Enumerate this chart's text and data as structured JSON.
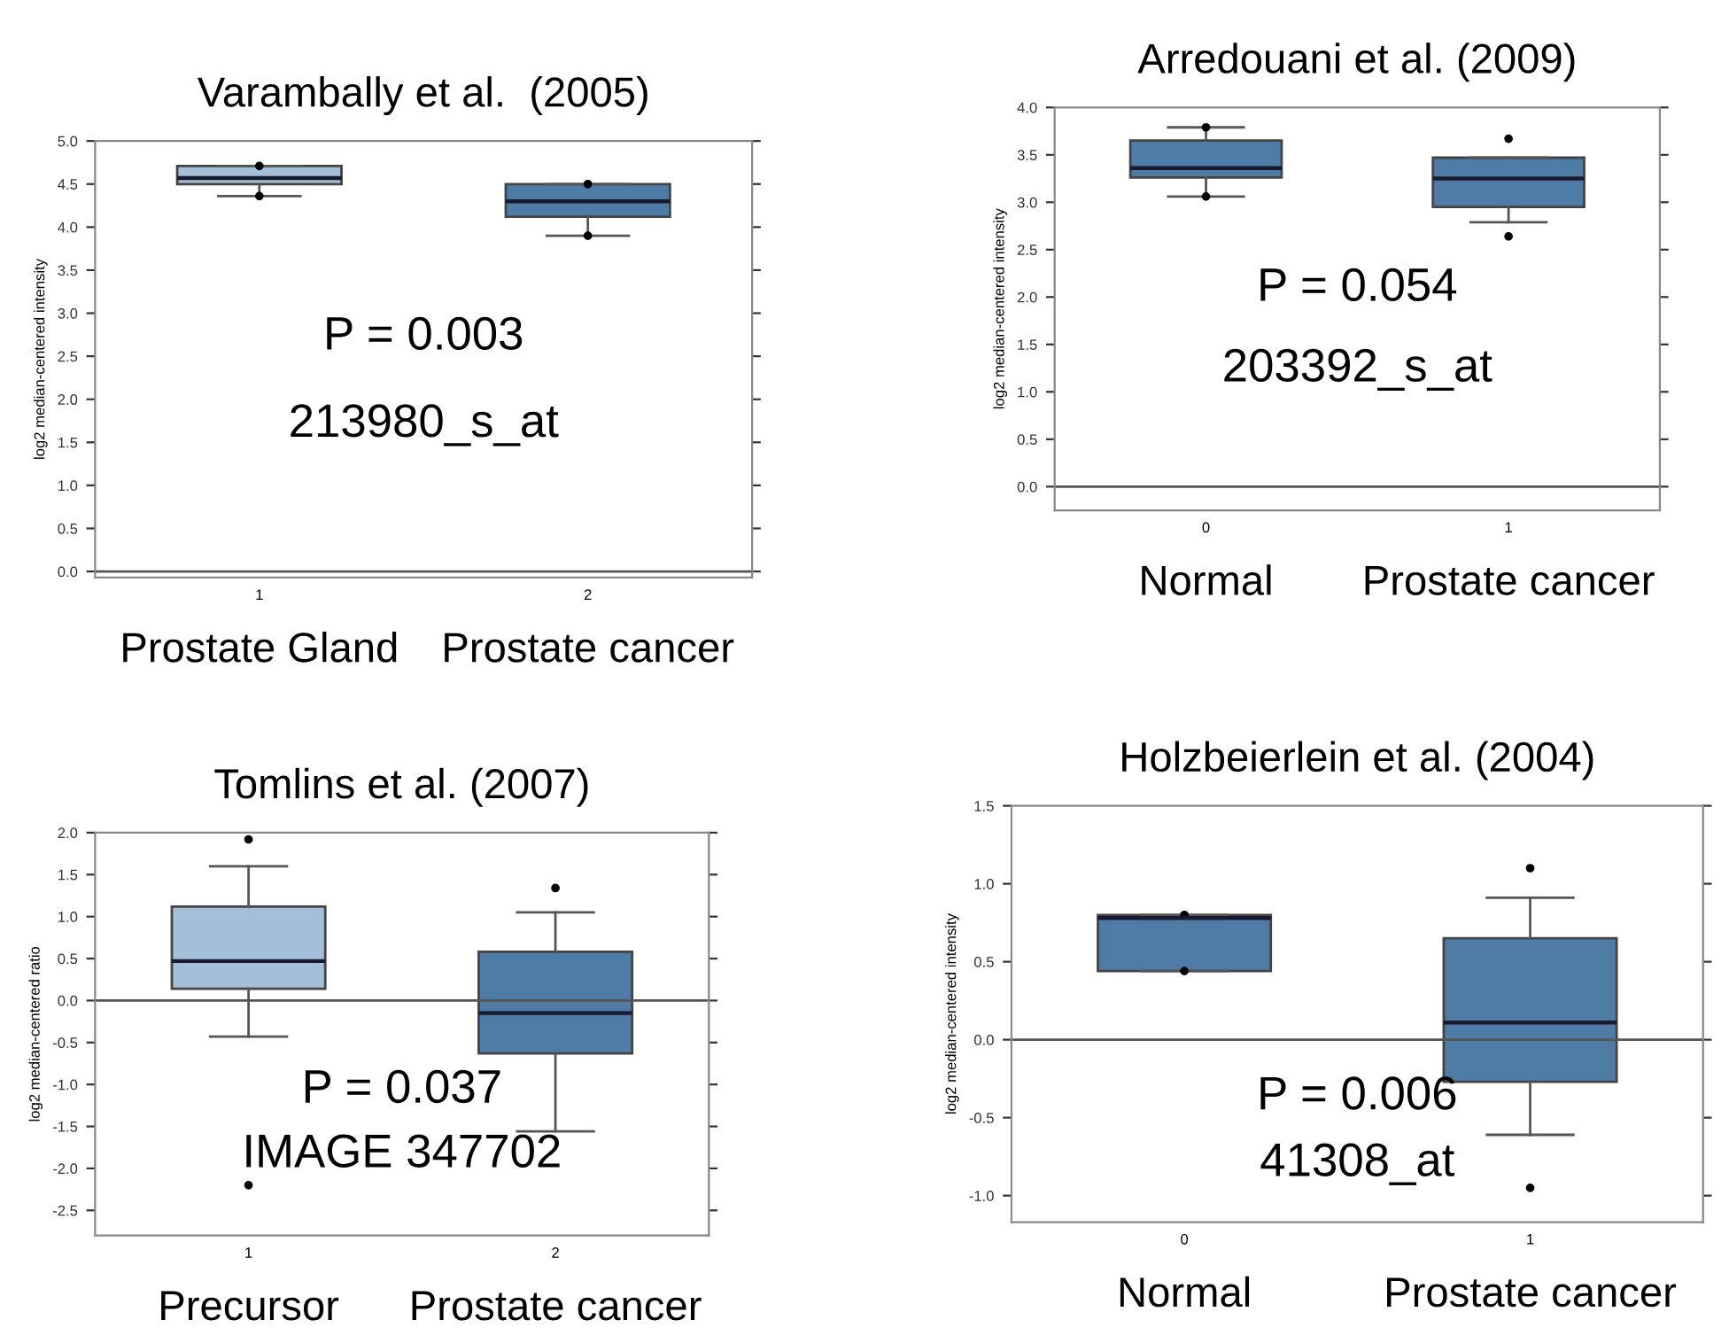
{
  "chart_data": [
    {
      "type": "box",
      "title": "Varambally et al.  (2005)",
      "ylabel": "log2 median-centered intensity",
      "categories": [
        "Prostate Gland",
        "Prostate cancer"
      ],
      "colors": [
        "#a3bfd9",
        "#4f7ba7"
      ],
      "boxes": [
        {
          "low": 4.36,
          "q1": 4.5,
          "median": 4.57,
          "q3": 4.71,
          "high": 4.71,
          "outliers": [
            4.71,
            4.36
          ]
        },
        {
          "low": 3.9,
          "q1": 4.12,
          "median": 4.3,
          "q3": 4.5,
          "high": 4.5,
          "outliers": [
            4.5,
            3.9
          ]
        }
      ],
      "ylim": [
        -0.07,
        5.0
      ],
      "yticks": [
        {
          "value": 0,
          "label": "0.0"
        },
        0.5,
        {
          "value": 1,
          "label": "1.0"
        },
        1.5,
        {
          "value": 2,
          "label": "2.0"
        },
        2.5,
        {
          "value": 3,
          "label": "3.0"
        },
        3.5,
        {
          "value": 4,
          "label": "4.0"
        },
        4.5,
        {
          "value": 5,
          "label": "5.0"
        }
      ],
      "ref_lines": [
        {
          "axis": "y",
          "value": 0,
          "color": "#555555"
        }
      ],
      "annotations": [
        "P = 0.003",
        "213980_s_at",
        "1",
        "2"
      ]
    },
    {
      "type": "box",
      "title": "Arredouani et al. (2009)",
      "ylabel": "log2 median-centered intensity",
      "categories": [
        "Normal",
        "Prostate cancer"
      ],
      "colors": [
        "#4f7ba7",
        "#4f7ba7"
      ],
      "boxes": [
        {
          "low": 3.06,
          "q1": 3.26,
          "median": 3.36,
          "q3": 3.65,
          "high": 3.79,
          "outliers": [
            3.79,
            3.06
          ]
        },
        {
          "low": 2.79,
          "q1": 2.95,
          "median": 3.25,
          "q3": 3.47,
          "high": 3.47,
          "outliers": [
            3.67,
            2.64
          ]
        }
      ],
      "ylim": [
        -0.25,
        4.0
      ],
      "yticks": [
        {
          "value": 0,
          "label": "0.0"
        },
        0.5,
        {
          "value": 1,
          "label": "1.0"
        },
        1.5,
        {
          "value": 2,
          "label": "2.0"
        },
        2.5,
        {
          "value": 3,
          "label": "3.0"
        },
        3.5,
        {
          "value": 4,
          "label": "4.0"
        }
      ],
      "ref_lines": [
        {
          "axis": "y",
          "value": 0,
          "color": "#555555"
        }
      ],
      "annotations": [
        "P = 0.054",
        "203392_s_at",
        "0",
        "1"
      ]
    },
    {
      "type": "box",
      "title": "Tomlins et al. (2007)",
      "ylabel": "log2 median-centered ratio",
      "categories": [
        "Precursor",
        "Prostate cancer"
      ],
      "colors": [
        "#a3bfd9",
        "#4f7ba7"
      ],
      "boxes": [
        {
          "low": -0.43,
          "q1": 0.14,
          "median": 0.47,
          "q3": 1.12,
          "high": 1.6,
          "outliers": [
            1.92,
            -2.2
          ]
        },
        {
          "low": -1.56,
          "q1": -0.63,
          "median": -0.15,
          "q3": 0.58,
          "high": 1.05,
          "outliers": [
            1.34
          ]
        }
      ],
      "ylim": [
        -2.8,
        2.0
      ],
      "yticks": [
        {
          "value": -2.5,
          "label": "-2.5"
        },
        {
          "value": -2.0,
          "label": "-2.0"
        },
        {
          "value": -1.5,
          "label": "-1.5"
        },
        {
          "value": -1.0,
          "label": "-1.0"
        },
        {
          "value": -0.5,
          "label": "-0.5"
        },
        {
          "value": 0,
          "label": "0.0"
        },
        0.5,
        {
          "value": 1,
          "label": "1.0"
        },
        1.5,
        {
          "value": 2,
          "label": "2.0"
        }
      ],
      "ref_lines": [
        {
          "axis": "y",
          "value": 0,
          "color": "#555555"
        }
      ],
      "annotations": [
        "P = 0.037",
        "IMAGE 347702",
        "1",
        "2"
      ]
    },
    {
      "type": "box",
      "title": "Holzbeierlein et al. (2004)",
      "ylabel": "log2 median-centered intensity",
      "categories": [
        "Normal",
        "Prostate cancer"
      ],
      "colors": [
        "#4f7ba7",
        "#4f7ba7"
      ],
      "boxes": [
        {
          "low": 0.44,
          "q1": 0.44,
          "median": 0.78,
          "q3": 0.8,
          "high": 0.8,
          "outliers": [
            0.8,
            0.44
          ]
        },
        {
          "low": -0.61,
          "q1": -0.27,
          "median": 0.11,
          "q3": 0.65,
          "high": 0.91,
          "outliers": [
            1.1,
            -0.95
          ]
        }
      ],
      "ylim": [
        -1.17,
        1.5
      ],
      "yticks": [
        {
          "value": -1.0,
          "label": "-1.0"
        },
        {
          "value": -0.5,
          "label": "-0.5"
        },
        {
          "value": 0,
          "label": "0.0"
        },
        0.5,
        {
          "value": 1,
          "label": "1.0"
        },
        1.5
      ],
      "ref_lines": [
        {
          "axis": "y",
          "value": 0,
          "color": "#555555"
        }
      ],
      "annotations": [
        "P = 0.006",
        "41308_at",
        "0",
        "1"
      ]
    }
  ]
}
